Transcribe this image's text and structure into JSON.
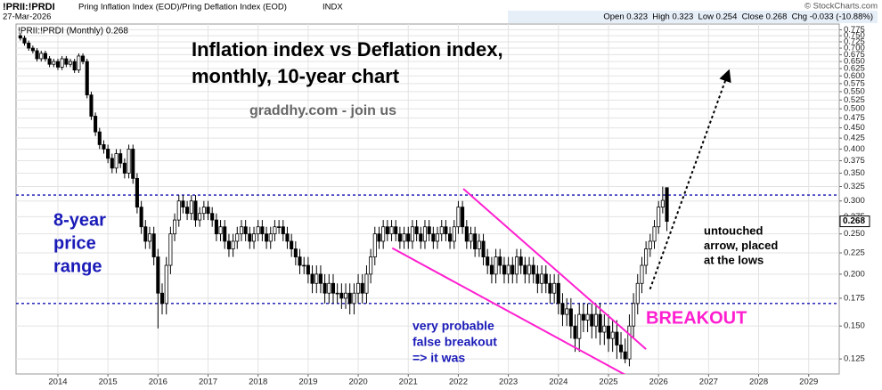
{
  "chart_data": {
    "type": "candlestick",
    "symbol": "!PRII:!PRDI",
    "description": "Pring Inflation Index (EOD)/Pring Deflation Index (EOD)",
    "exchange": "INDX",
    "date": "27-Mar-2026",
    "info_line": "Open 0.323  High 0.323  Low 0.254  Close 0.268  Chg -0.033 (-10.88%)",
    "source": "© StockCharts.com",
    "legend_label": "!PRII:!PRDI (Monthly) 0.268",
    "title": [
      "Inflation index vs Deflation index,",
      "monthly, 10-year chart"
    ],
    "subtitle": "graddhy.com - join us",
    "annotations": [
      {
        "name": "range-note",
        "color": "#1a1ab8",
        "lines": [
          "8-year",
          "price",
          "range"
        ]
      },
      {
        "name": "arrow-note",
        "color": "#000000",
        "lines": [
          "untouched",
          "arrow, placed",
          "at the lows"
        ]
      },
      {
        "name": "breakout-note",
        "color": "#ff1fd0",
        "lines": [
          "BREAKOUT"
        ]
      },
      {
        "name": "false-breakout-note",
        "color": "#1a1ab8",
        "lines": [
          "very probable",
          "false breakout",
          "=> it was"
        ]
      }
    ],
    "log_scale": true,
    "grid": true,
    "up_color": "#ffffff",
    "down_color": "#000000",
    "color": "#000000",
    "xlim": [
      2013.164,
      2029.61
    ],
    "xticks": [
      2014,
      2015,
      2016,
      2017,
      2018,
      2019,
      2020,
      2021,
      2022,
      2023,
      2024,
      2025,
      2026,
      2027,
      2028,
      2029
    ],
    "ylim": [
      0.115,
      0.8
    ],
    "yticks": [
      0.125,
      {
        "value": 0.15,
        "label": "0.150"
      },
      0.175,
      {
        "value": 0.2,
        "label": "0.200"
      },
      0.225,
      {
        "value": 0.25,
        "label": "0.250"
      },
      0.275,
      {
        "value": 0.3,
        "label": "0.300"
      },
      0.325,
      {
        "value": 0.35,
        "label": "0.350"
      },
      0.375,
      {
        "value": 0.4,
        "label": "0.400"
      },
      0.425,
      {
        "value": 0.45,
        "label": "0.450"
      },
      0.475,
      {
        "value": 0.5,
        "label": "0.500"
      },
      0.525,
      {
        "value": 0.55,
        "label": "0.550"
      },
      0.575,
      {
        "value": 0.6,
        "label": "0.600"
      },
      0.625,
      {
        "value": 0.65,
        "label": "0.650"
      },
      0.675,
      {
        "value": 0.7,
        "label": "0.700"
      },
      0.725,
      {
        "value": 0.75,
        "label": "0.750"
      },
      0.775
    ],
    "hlines": {
      "color": "#1010b0",
      "values": [
        0.31,
        0.17
      ]
    },
    "trendlines": [
      {
        "color": "#ff1fd0",
        "x": [
          2022.1,
          2025.75
        ],
        "y": [
          0.321,
          0.132
        ]
      },
      {
        "color": "#ff1fd0",
        "x": [
          2020.68,
          2025.48
        ],
        "y": [
          0.231,
          0.112
        ]
      }
    ],
    "arrow": {
      "color": "#000000",
      "x": [
        2025.83,
        2027.4
      ],
      "y": [
        0.184,
        0.615
      ]
    },
    "x": [
      2013.25,
      2013.333,
      2013.417,
      2013.5,
      2013.583,
      2013.667,
      2013.75,
      2013.833,
      2013.917,
      2014,
      2014.083,
      2014.167,
      2014.25,
      2014.333,
      2014.417,
      2014.5,
      2014.583,
      2014.667,
      2014.75,
      2014.833,
      2014.917,
      2015,
      2015.083,
      2015.167,
      2015.25,
      2015.333,
      2015.417,
      2015.5,
      2015.583,
      2015.667,
      2015.75,
      2015.833,
      2015.917,
      2016,
      2016.083,
      2016.167,
      2016.25,
      2016.333,
      2016.417,
      2016.5,
      2016.583,
      2016.667,
      2016.75,
      2016.833,
      2016.917,
      2017,
      2017.083,
      2017.167,
      2017.25,
      2017.333,
      2017.417,
      2017.5,
      2017.583,
      2017.667,
      2017.75,
      2017.833,
      2017.917,
      2018,
      2018.083,
      2018.167,
      2018.25,
      2018.333,
      2018.417,
      2018.5,
      2018.583,
      2018.667,
      2018.75,
      2018.833,
      2018.917,
      2019,
      2019.083,
      2019.167,
      2019.25,
      2019.333,
      2019.417,
      2019.5,
      2019.583,
      2019.667,
      2019.75,
      2019.833,
      2019.917,
      2020,
      2020.083,
      2020.167,
      2020.25,
      2020.333,
      2020.417,
      2020.5,
      2020.583,
      2020.667,
      2020.75,
      2020.833,
      2020.917,
      2021,
      2021.083,
      2021.167,
      2021.25,
      2021.333,
      2021.417,
      2021.5,
      2021.583,
      2021.667,
      2021.75,
      2021.833,
      2021.917,
      2022,
      2022.083,
      2022.167,
      2022.25,
      2022.333,
      2022.417,
      2022.5,
      2022.583,
      2022.667,
      2022.75,
      2022.833,
      2022.917,
      2023,
      2023.083,
      2023.167,
      2023.25,
      2023.333,
      2023.417,
      2023.5,
      2023.583,
      2023.667,
      2023.75,
      2023.833,
      2023.917,
      2024,
      2024.083,
      2024.167,
      2024.25,
      2024.333,
      2024.417,
      2024.5,
      2024.583,
      2024.667,
      2024.75,
      2024.833,
      2024.917,
      2025,
      2025.083,
      2025.167,
      2025.25,
      2025.333,
      2025.417,
      2025.5,
      2025.583,
      2025.667,
      2025.75,
      2025.833,
      2025.917,
      2026,
      2026.083,
      2026.167
    ],
    "open": [
      0.75,
      0.74,
      0.72,
      0.7,
      0.69,
      0.66,
      0.68,
      0.66,
      0.64,
      0.65,
      0.63,
      0.66,
      0.64,
      0.65,
      0.62,
      0.67,
      0.65,
      0.54,
      0.48,
      0.44,
      0.41,
      0.4,
      0.38,
      0.36,
      0.39,
      0.37,
      0.35,
      0.4,
      0.34,
      0.29,
      0.26,
      0.24,
      0.25,
      0.22,
      0.18,
      0.17,
      0.21,
      0.25,
      0.27,
      0.3,
      0.29,
      0.28,
      0.3,
      0.27,
      0.28,
      0.29,
      0.28,
      0.27,
      0.25,
      0.26,
      0.24,
      0.23,
      0.24,
      0.25,
      0.26,
      0.25,
      0.24,
      0.25,
      0.26,
      0.25,
      0.24,
      0.25,
      0.26,
      0.26,
      0.25,
      0.24,
      0.23,
      0.22,
      0.21,
      0.21,
      0.2,
      0.19,
      0.2,
      0.19,
      0.18,
      0.19,
      0.18,
      0.18,
      0.175,
      0.18,
      0.17,
      0.18,
      0.19,
      0.18,
      0.2,
      0.22,
      0.25,
      0.24,
      0.26,
      0.25,
      0.26,
      0.25,
      0.24,
      0.25,
      0.24,
      0.26,
      0.25,
      0.24,
      0.26,
      0.25,
      0.24,
      0.25,
      0.26,
      0.25,
      0.24,
      0.26,
      0.29,
      0.26,
      0.24,
      0.25,
      0.23,
      0.24,
      0.22,
      0.21,
      0.2,
      0.22,
      0.21,
      0.2,
      0.21,
      0.2,
      0.22,
      0.21,
      0.2,
      0.21,
      0.2,
      0.19,
      0.2,
      0.19,
      0.18,
      0.19,
      0.17,
      0.16,
      0.165,
      0.15,
      0.14,
      0.16,
      0.155,
      0.16,
      0.15,
      0.16,
      0.145,
      0.15,
      0.14,
      0.145,
      0.135,
      0.13,
      0.125,
      0.15,
      0.17,
      0.19,
      0.21,
      0.23,
      0.24,
      0.26,
      0.29,
      0.323
    ],
    "high": [
      0.76,
      0.75,
      0.73,
      0.71,
      0.7,
      0.69,
      0.69,
      0.67,
      0.66,
      0.66,
      0.67,
      0.67,
      0.66,
      0.66,
      0.68,
      0.68,
      0.66,
      0.55,
      0.49,
      0.45,
      0.42,
      0.41,
      0.39,
      0.4,
      0.4,
      0.38,
      0.41,
      0.41,
      0.35,
      0.3,
      0.27,
      0.26,
      0.26,
      0.23,
      0.19,
      0.22,
      0.26,
      0.28,
      0.31,
      0.31,
      0.3,
      0.31,
      0.31,
      0.29,
      0.3,
      0.3,
      0.29,
      0.28,
      0.27,
      0.27,
      0.25,
      0.25,
      0.26,
      0.27,
      0.27,
      0.26,
      0.26,
      0.27,
      0.27,
      0.26,
      0.26,
      0.27,
      0.27,
      0.27,
      0.26,
      0.25,
      0.24,
      0.23,
      0.22,
      0.22,
      0.21,
      0.21,
      0.21,
      0.2,
      0.2,
      0.2,
      0.19,
      0.19,
      0.19,
      0.19,
      0.19,
      0.2,
      0.2,
      0.21,
      0.23,
      0.26,
      0.26,
      0.27,
      0.27,
      0.27,
      0.27,
      0.26,
      0.26,
      0.26,
      0.27,
      0.27,
      0.26,
      0.27,
      0.27,
      0.26,
      0.26,
      0.27,
      0.27,
      0.26,
      0.27,
      0.3,
      0.3,
      0.27,
      0.26,
      0.26,
      0.25,
      0.25,
      0.23,
      0.22,
      0.23,
      0.23,
      0.22,
      0.22,
      0.22,
      0.23,
      0.23,
      0.22,
      0.22,
      0.22,
      0.21,
      0.21,
      0.21,
      0.2,
      0.2,
      0.2,
      0.18,
      0.175,
      0.175,
      0.16,
      0.17,
      0.17,
      0.17,
      0.17,
      0.17,
      0.17,
      0.16,
      0.16,
      0.155,
      0.155,
      0.145,
      0.14,
      0.16,
      0.18,
      0.2,
      0.22,
      0.24,
      0.25,
      0.27,
      0.3,
      0.325,
      0.323
    ],
    "low": [
      0.73,
      0.71,
      0.69,
      0.68,
      0.65,
      0.65,
      0.65,
      0.63,
      0.63,
      0.62,
      0.62,
      0.63,
      0.63,
      0.61,
      0.61,
      0.64,
      0.53,
      0.47,
      0.43,
      0.4,
      0.39,
      0.37,
      0.35,
      0.35,
      0.36,
      0.34,
      0.34,
      0.33,
      0.28,
      0.25,
      0.23,
      0.23,
      0.21,
      0.148,
      0.16,
      0.16,
      0.2,
      0.24,
      0.26,
      0.28,
      0.27,
      0.27,
      0.26,
      0.26,
      0.27,
      0.27,
      0.26,
      0.24,
      0.24,
      0.23,
      0.22,
      0.22,
      0.23,
      0.24,
      0.24,
      0.23,
      0.23,
      0.24,
      0.24,
      0.23,
      0.23,
      0.24,
      0.25,
      0.24,
      0.23,
      0.22,
      0.21,
      0.2,
      0.2,
      0.19,
      0.18,
      0.18,
      0.18,
      0.17,
      0.17,
      0.17,
      0.17,
      0.165,
      0.165,
      0.16,
      0.16,
      0.17,
      0.17,
      0.17,
      0.19,
      0.21,
      0.23,
      0.23,
      0.24,
      0.24,
      0.24,
      0.23,
      0.23,
      0.23,
      0.23,
      0.24,
      0.23,
      0.23,
      0.24,
      0.23,
      0.23,
      0.24,
      0.24,
      0.23,
      0.23,
      0.25,
      0.25,
      0.23,
      0.23,
      0.22,
      0.22,
      0.21,
      0.2,
      0.19,
      0.19,
      0.2,
      0.19,
      0.19,
      0.19,
      0.19,
      0.2,
      0.19,
      0.19,
      0.19,
      0.18,
      0.18,
      0.18,
      0.17,
      0.17,
      0.16,
      0.15,
      0.15,
      0.14,
      0.13,
      0.13,
      0.145,
      0.145,
      0.14,
      0.14,
      0.135,
      0.135,
      0.13,
      0.13,
      0.125,
      0.125,
      0.122,
      0.12,
      0.14,
      0.16,
      0.18,
      0.2,
      0.22,
      0.23,
      0.25,
      0.28,
      0.254
    ],
    "close": [
      0.74,
      0.72,
      0.7,
      0.69,
      0.66,
      0.68,
      0.66,
      0.64,
      0.65,
      0.63,
      0.66,
      0.64,
      0.65,
      0.62,
      0.67,
      0.65,
      0.54,
      0.48,
      0.44,
      0.41,
      0.4,
      0.38,
      0.36,
      0.39,
      0.37,
      0.35,
      0.4,
      0.34,
      0.29,
      0.26,
      0.24,
      0.25,
      0.22,
      0.18,
      0.17,
      0.21,
      0.25,
      0.27,
      0.3,
      0.29,
      0.28,
      0.3,
      0.27,
      0.28,
      0.29,
      0.28,
      0.27,
      0.25,
      0.26,
      0.24,
      0.23,
      0.24,
      0.25,
      0.26,
      0.25,
      0.24,
      0.25,
      0.26,
      0.25,
      0.24,
      0.25,
      0.26,
      0.26,
      0.25,
      0.24,
      0.23,
      0.22,
      0.21,
      0.21,
      0.2,
      0.19,
      0.2,
      0.19,
      0.18,
      0.19,
      0.18,
      0.18,
      0.175,
      0.18,
      0.17,
      0.18,
      0.19,
      0.18,
      0.2,
      0.22,
      0.25,
      0.24,
      0.26,
      0.25,
      0.26,
      0.25,
      0.24,
      0.25,
      0.24,
      0.26,
      0.25,
      0.24,
      0.26,
      0.25,
      0.24,
      0.25,
      0.26,
      0.25,
      0.24,
      0.26,
      0.29,
      0.26,
      0.24,
      0.25,
      0.23,
      0.24,
      0.22,
      0.21,
      0.2,
      0.22,
      0.21,
      0.2,
      0.21,
      0.2,
      0.22,
      0.21,
      0.2,
      0.21,
      0.2,
      0.19,
      0.2,
      0.19,
      0.18,
      0.19,
      0.17,
      0.16,
      0.165,
      0.15,
      0.14,
      0.16,
      0.155,
      0.16,
      0.15,
      0.16,
      0.145,
      0.15,
      0.14,
      0.145,
      0.135,
      0.13,
      0.125,
      0.15,
      0.17,
      0.19,
      0.21,
      0.23,
      0.24,
      0.26,
      0.29,
      0.301,
      0.268
    ]
  }
}
